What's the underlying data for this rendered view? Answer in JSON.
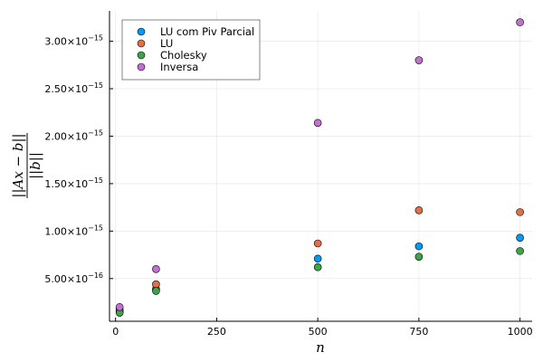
{
  "chart_data": {
    "type": "scatter",
    "xlabel": "n",
    "ylabel_numerator": "||Ax − b||",
    "ylabel_denominator": "||b||",
    "xlim": [
      -15,
      1030
    ],
    "ylim": [
      5e-17,
      3.32e-15
    ],
    "x_ticks": [
      0,
      250,
      500,
      750,
      1000
    ],
    "x_tick_labels": [
      "0",
      "250",
      "500",
      "750",
      "1000"
    ],
    "y_ticks": [
      5e-16,
      1e-15,
      1.5e-15,
      2e-15,
      2.5e-15,
      3e-15
    ],
    "y_tick_mantissas": [
      "5.00",
      "1.00",
      "1.50",
      "2.00",
      "2.50",
      "3.00"
    ],
    "y_tick_exponents": [
      "−16",
      "−15",
      "−15",
      "−15",
      "−15",
      "−15"
    ],
    "y_tick_times": "×10",
    "grid": true,
    "legend_position": "top-left",
    "series": [
      {
        "name": "LU com Piv Parcial",
        "color": "#009af9",
        "x": [
          10,
          100,
          500,
          750,
          1000
        ],
        "y": [
          1.5e-16,
          3.9e-16,
          7.1e-16,
          8.4e-16,
          9.3e-16
        ]
      },
      {
        "name": "LU",
        "color": "#e26f46",
        "x": [
          10,
          100,
          500,
          750,
          1000
        ],
        "y": [
          1.7e-16,
          4.4e-16,
          8.7e-16,
          1.22e-15,
          1.2e-15
        ]
      },
      {
        "name": "Cholesky",
        "color": "#3da44d",
        "x": [
          10,
          100,
          500,
          750,
          1000
        ],
        "y": [
          1.4e-16,
          3.7e-16,
          6.2e-16,
          7.3e-16,
          7.9e-16
        ]
      },
      {
        "name": "Inversa",
        "color": "#c271d2",
        "x": [
          10,
          100,
          500,
          750,
          1000
        ],
        "y": [
          2e-16,
          6e-16,
          2.14e-15,
          2.8e-15,
          3.2e-15
        ]
      }
    ]
  }
}
